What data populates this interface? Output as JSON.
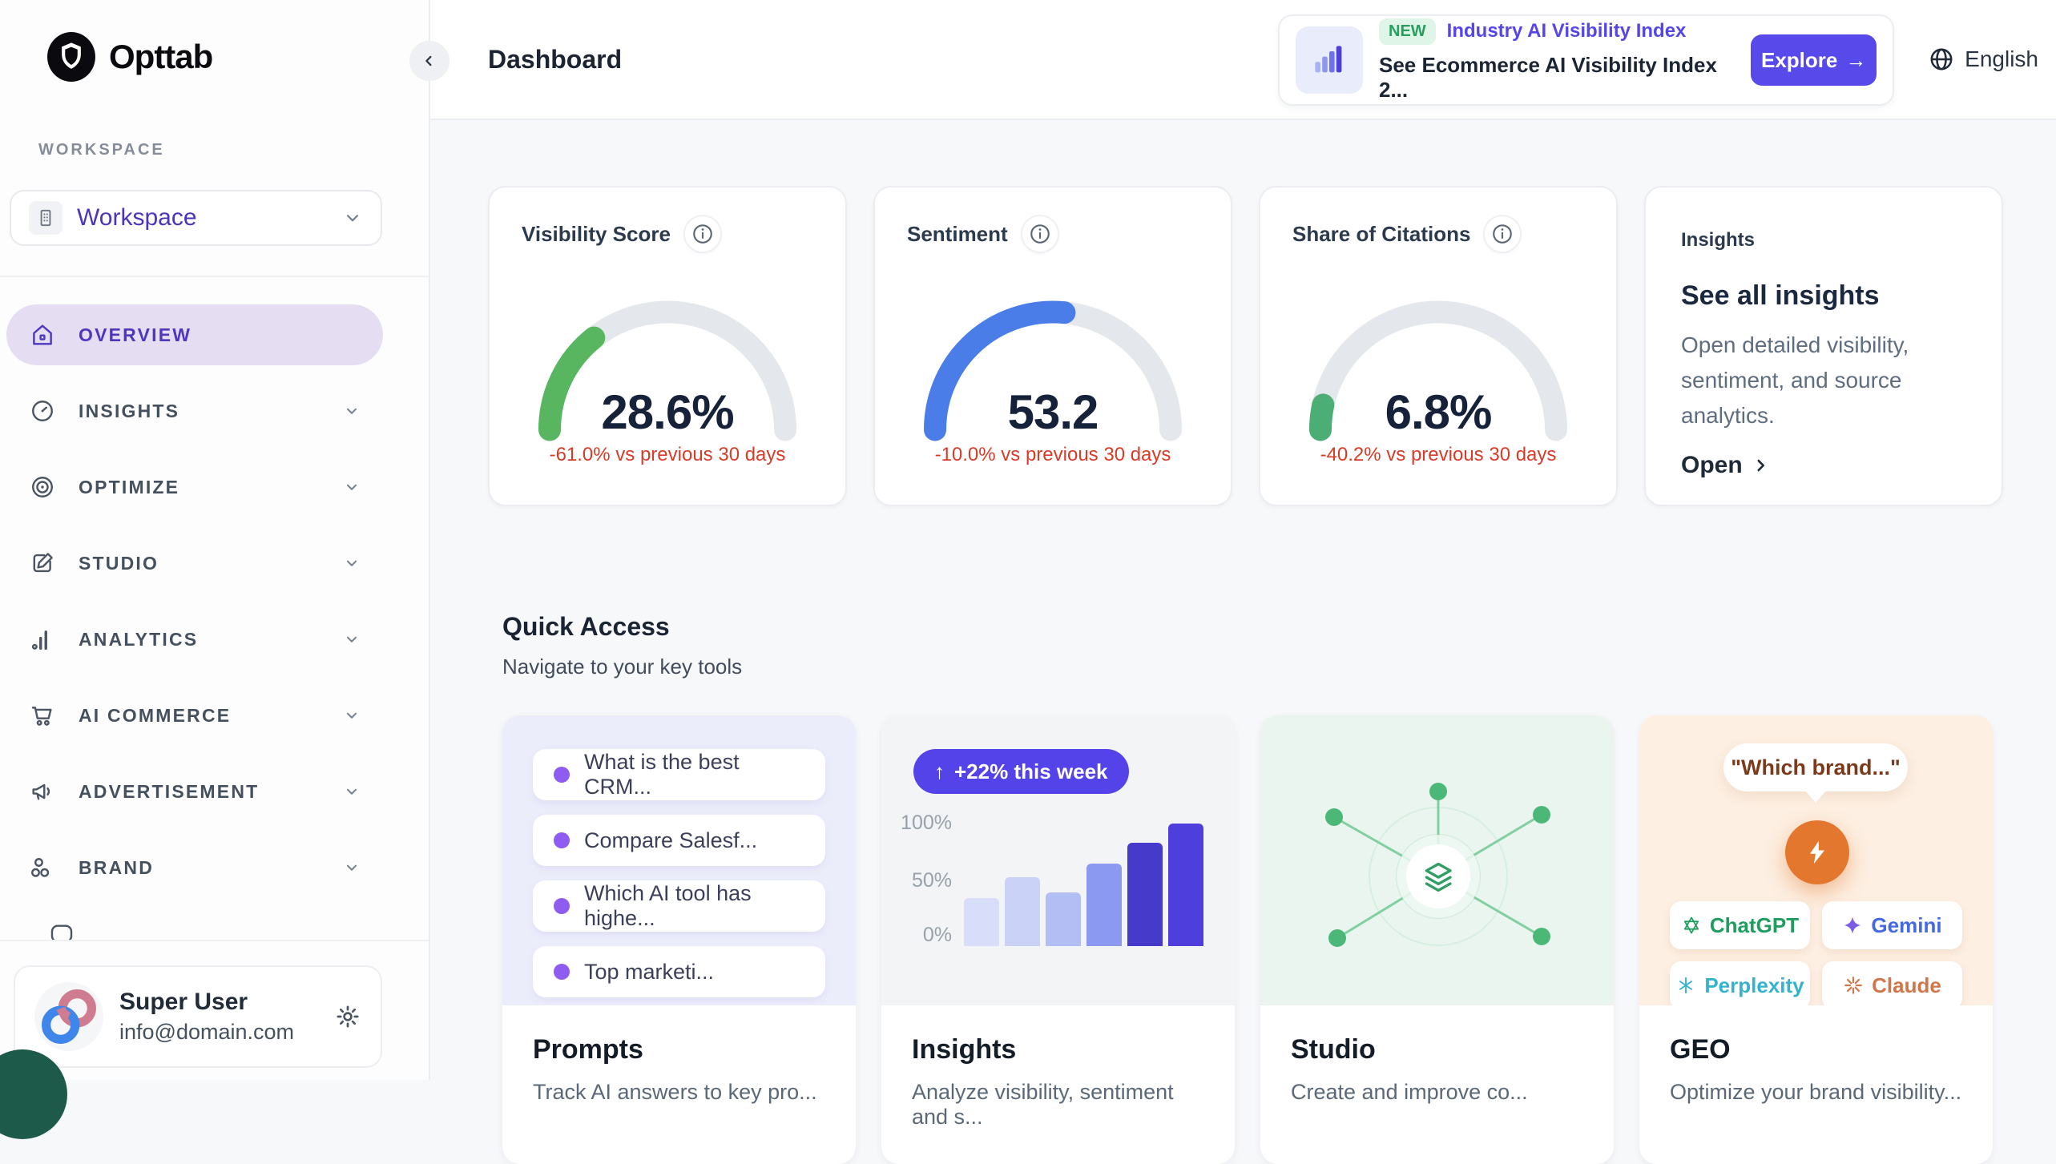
{
  "brand": {
    "name": "Opttab"
  },
  "sidebar": {
    "section_label": "WORKSPACE",
    "workspace_selector": {
      "label": "Workspace",
      "icon": "building-icon"
    },
    "nav": [
      {
        "label": "OVERVIEW",
        "icon": "home-icon",
        "active": true
      },
      {
        "label": "INSIGHTS",
        "icon": "gauge-icon"
      },
      {
        "label": "OPTIMIZE",
        "icon": "target-icon"
      },
      {
        "label": "STUDIO",
        "icon": "edit-icon"
      },
      {
        "label": "ANALYTICS",
        "icon": "bar-chart-icon"
      },
      {
        "label": "AI COMMERCE",
        "icon": "cart-icon"
      },
      {
        "label": "ADVERTISEMENT",
        "icon": "megaphone-icon"
      },
      {
        "label": "BRAND",
        "icon": "circles-icon"
      }
    ],
    "user": {
      "name": "Super User",
      "email": "info@domain.com"
    }
  },
  "header": {
    "title": "Dashboard",
    "banner": {
      "badge": "NEW",
      "title": "Industry AI Visibility Index",
      "subtitle": "See Ecommerce AI Visibility Index 2...",
      "cta": "Explore",
      "cta_arrow": "→"
    },
    "language": "English"
  },
  "kpis": [
    {
      "title": "Visibility Score",
      "value": "28.6%",
      "percent": 28.6,
      "color": "#57b65f",
      "delta": "-61.0% vs previous 30 days"
    },
    {
      "title": "Sentiment",
      "value": "53.2",
      "percent": 53.2,
      "color": "#4b7de9",
      "delta": "-10.0% vs previous 30 days"
    },
    {
      "title": "Share of Citations",
      "value": "6.8%",
      "percent": 6.8,
      "color": "#4bae74",
      "delta": "-40.2% vs previous 30 days"
    }
  ],
  "insights_card": {
    "label": "Insights",
    "title": "See all insights",
    "body": "Open detailed visibility, sentiment, and source analytics.",
    "cta": "Open"
  },
  "quick_access": {
    "title": "Quick Access",
    "subtitle": "Navigate to your key tools",
    "prompts": {
      "title": "Prompts",
      "desc": "Track AI answers to key pro...",
      "items": [
        "What is the best CRM...",
        "Compare Salesf...",
        "Which AI tool has highe...",
        "Top marketi..."
      ]
    },
    "insights": {
      "title": "Insights",
      "desc": "Analyze visibility, sentiment and s...",
      "badge_arrow": "↑",
      "badge": "+22% this week",
      "chart_data": {
        "type": "bar",
        "values": [
          39,
          56,
          44,
          67,
          84,
          100
        ],
        "yticks": [
          "100%",
          "50%",
          "0%"
        ],
        "ylim": [
          0,
          100
        ],
        "colors": [
          "#d8ddf9",
          "#cbd2f8",
          "#b3bef4",
          "#8c99f0",
          "#463aca",
          "#4e3fdd"
        ]
      }
    },
    "studio": {
      "title": "Studio",
      "desc": "Create and improve co..."
    },
    "geo": {
      "title": "GEO",
      "desc": "Optimize your brand visibility...",
      "quote": "\"Which brand...\"",
      "chips": [
        {
          "label": "ChatGPT",
          "color": "#1f9d5f",
          "icon_color": "#1f9d5f"
        },
        {
          "label": "Gemini",
          "color": "#4468e6",
          "icon_color": "#7b5ce5"
        },
        {
          "label": "Perplexity",
          "color": "#35b3cd",
          "icon_color": "#35b3cd"
        },
        {
          "label": "Claude",
          "color": "#d0764a",
          "icon_color": "#d0764a"
        }
      ]
    }
  },
  "accent_colors": {
    "indigo": "#5546ea",
    "purple_active": "#4c38c0",
    "delta_red": "#d83b28"
  }
}
